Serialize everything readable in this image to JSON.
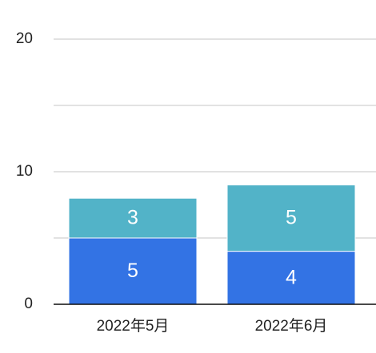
{
  "chart_data": {
    "type": "stacked_bar",
    "categories": [
      "2022年5月",
      "2022年6月"
    ],
    "series": [
      {
        "color": "#3373e4",
        "values": [
          5,
          4
        ]
      },
      {
        "color": "#52b3c8",
        "values": [
          3,
          5
        ]
      }
    ],
    "ylim": [
      0,
      20
    ],
    "yticks": [
      0,
      10,
      20
    ],
    "minor_yticks": [
      5,
      15
    ],
    "grid": true
  }
}
